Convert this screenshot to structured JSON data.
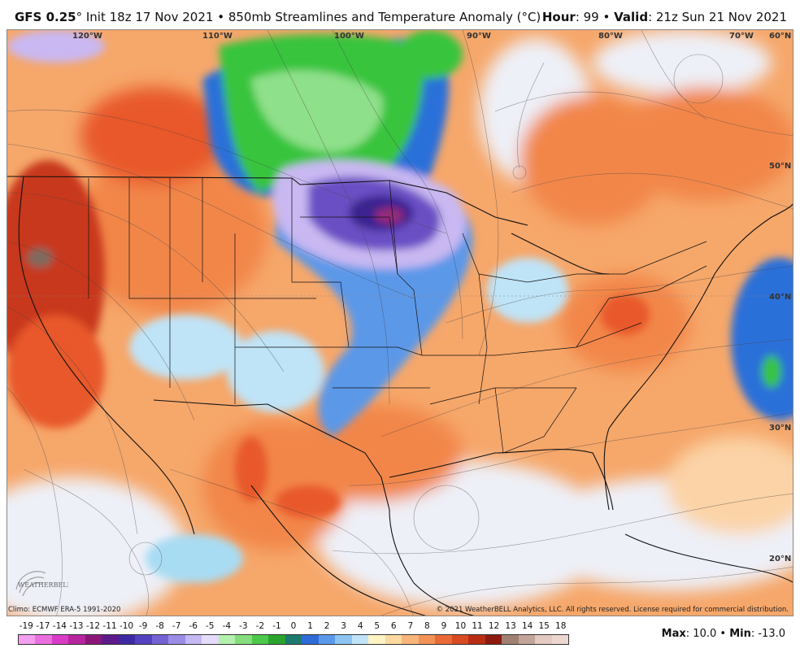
{
  "header": {
    "model": "GFS 0.25",
    "degree_mark": "°",
    "init": " Init 18z 17 Nov 2021",
    "bullet": " • ",
    "product": "850mb Streamlines and Temperature Anomaly (°C)",
    "hour_label": "Hour",
    "hour_value": ": 99",
    "valid_label": "Valid",
    "valid_value": ": 21z Sun 21 Nov 2021"
  },
  "map": {
    "lon_labels": [
      "120°W",
      "110°W",
      "100°W",
      "90°W",
      "80°W",
      "70°W"
    ],
    "lat_labels": [
      "60°N",
      "50°N",
      "40°N",
      "30°N",
      "20°N"
    ],
    "colors": {
      "deep_red": "#c8381e",
      "red": "#e8582c",
      "orange": "#f2864a",
      "light_orange": "#f6a76a",
      "peach": "#fbd3a6",
      "pale": "#eef0f8",
      "light_blue": "#a8dcf3",
      "blue": "#2b6fd9",
      "mid_blue": "#5b98e8",
      "purple": "#6a4fc4",
      "dark_purple": "#3b2491",
      "magenta": "#9a2a7a",
      "green": "#39c43d",
      "light_green": "#8fe08a",
      "lavender": "#c9b8f2",
      "brown": "#7d6a5f"
    }
  },
  "footer": {
    "climo": "Climo: ECMWF ERA-5 1991-2020",
    "copyright": "© 2021 WeatherBELL Analytics, LLC. All rights reserved. License required for commercial distribution.",
    "logo_text": "WEATHERBELL"
  },
  "scale": {
    "labels": [
      "-19",
      "-17",
      "-14",
      "-13",
      "-12",
      "-11",
      "-10",
      "-9",
      "-8",
      "-7",
      "-6",
      "-5",
      "-4",
      "-3",
      "-2",
      "-1",
      "0",
      "1",
      "2",
      "3",
      "4",
      "5",
      "6",
      "7",
      "8",
      "9",
      "10",
      "11",
      "12",
      "13",
      "14",
      "15",
      "18"
    ],
    "colors": [
      "#f59ef0",
      "#ea6fdf",
      "#d93cc7",
      "#b6249f",
      "#8c1677",
      "#5c1a8a",
      "#3d2aa3",
      "#5242c0",
      "#7563d4",
      "#9a8ce6",
      "#c3b8f2",
      "#e4dcfa",
      "#b4f0ae",
      "#84de7d",
      "#4cc84a",
      "#2aa42e",
      "#1d7a6e",
      "#2f6bd6",
      "#5a98ea",
      "#8cc4f2",
      "#bfe3f7",
      "#fdf3c4",
      "#fbd9a0",
      "#f7b57c",
      "#f29257",
      "#ea6a36",
      "#d84a22",
      "#b82c14",
      "#8c1a0e",
      "#a08070",
      "#c2a49a",
      "#e3c9c2",
      "#ecd7d0"
    ]
  },
  "maxmin": {
    "max_label": "Max",
    "max_value": ": 10.0",
    "sep": " • ",
    "min_label": "Min",
    "min_value": ": -13.0"
  }
}
